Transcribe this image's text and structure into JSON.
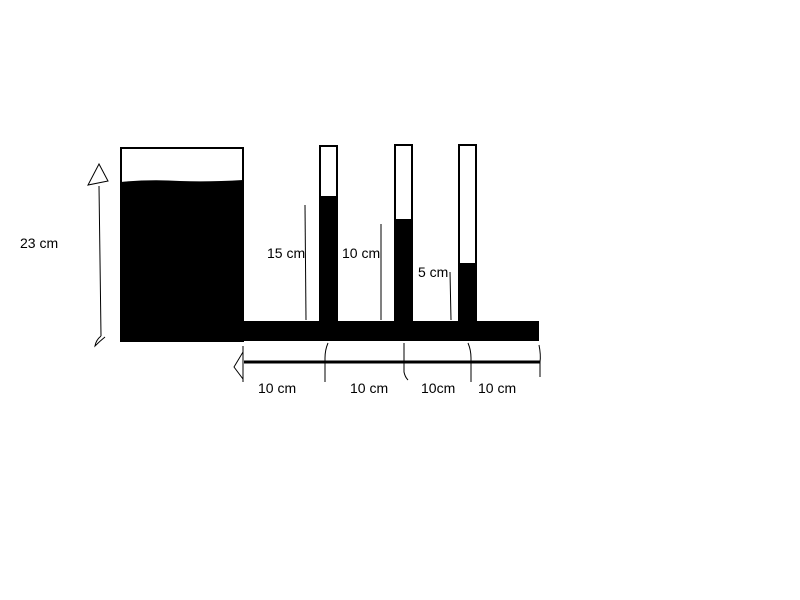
{
  "labels": {
    "tank_height": "23 cm",
    "tube1_height": "15 cm",
    "tube2_height": "10 cm",
    "tube3_height": "5 cm",
    "spacing1": "10 cm",
    "spacing2": "10 cm",
    "spacing3": "10cm",
    "spacing4": "10 cm"
  },
  "colors": {
    "ink": "#000000",
    "background": "#ffffff"
  }
}
